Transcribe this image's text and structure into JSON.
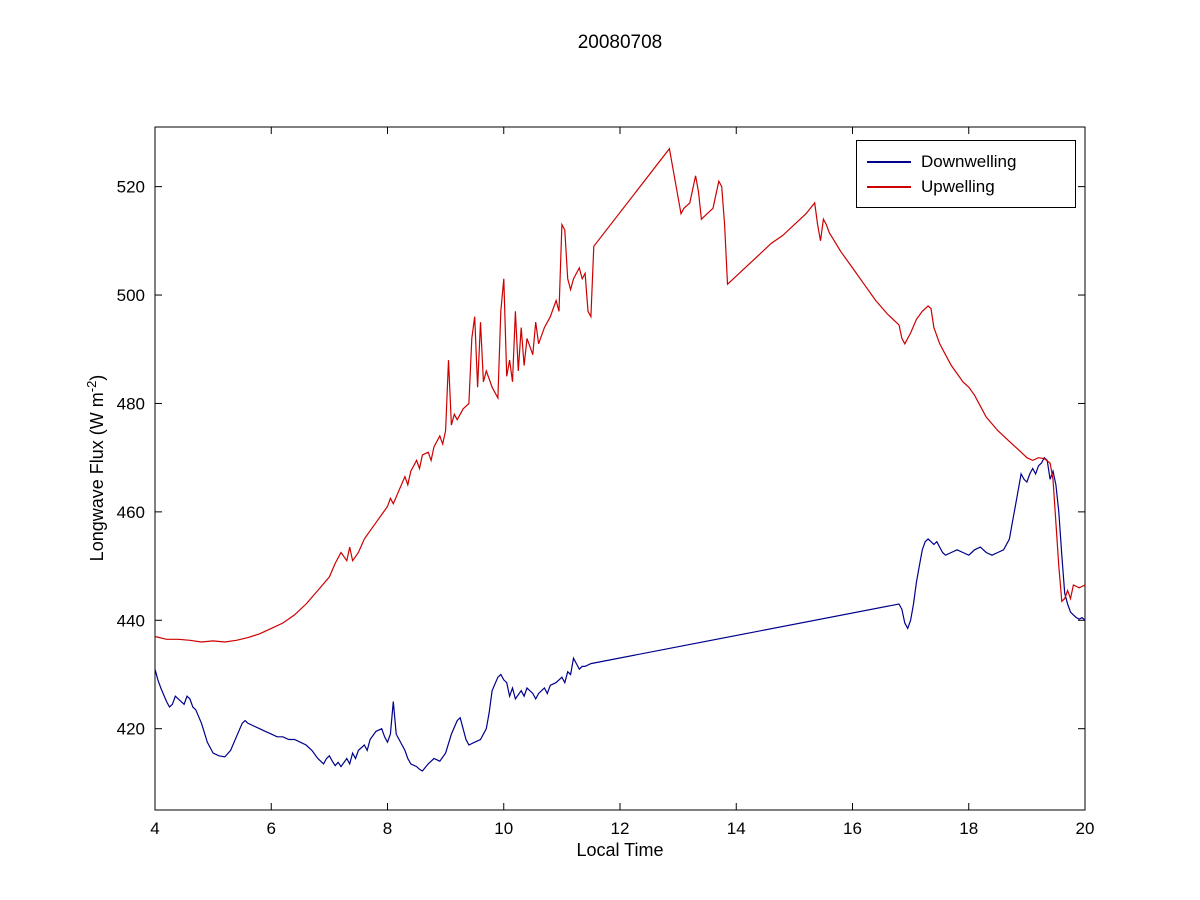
{
  "chart_data": {
    "type": "line",
    "title": "20080708",
    "xlabel": "Local Time",
    "ylabel": "Longwave Flux (W m-2)",
    "ylabel_parts": {
      "prefix": "Longwave Flux (W m",
      "sup": "-2",
      "suffix": ")"
    },
    "xlim": [
      4,
      20
    ],
    "ylim": [
      405,
      531
    ],
    "x_ticks": [
      4,
      6,
      8,
      10,
      12,
      14,
      16,
      18,
      20
    ],
    "y_ticks": [
      420,
      440,
      460,
      480,
      500,
      520
    ],
    "grid": false,
    "legend_position": "top-right",
    "series": [
      {
        "name": "Downwelling",
        "color": "#00008B",
        "points": [
          [
            4.0,
            431
          ],
          [
            4.05,
            429
          ],
          [
            4.1,
            427.5
          ],
          [
            4.2,
            425
          ],
          [
            4.25,
            424
          ],
          [
            4.3,
            424.5
          ],
          [
            4.35,
            426
          ],
          [
            4.4,
            425.5
          ],
          [
            4.5,
            424.5
          ],
          [
            4.55,
            426
          ],
          [
            4.6,
            425.5
          ],
          [
            4.65,
            424
          ],
          [
            4.7,
            423.5
          ],
          [
            4.8,
            421
          ],
          [
            4.9,
            417.5
          ],
          [
            5.0,
            415.5
          ],
          [
            5.1,
            415
          ],
          [
            5.2,
            414.8
          ],
          [
            5.3,
            416
          ],
          [
            5.4,
            418.5
          ],
          [
            5.5,
            421
          ],
          [
            5.55,
            421.5
          ],
          [
            5.6,
            421
          ],
          [
            5.7,
            420.5
          ],
          [
            5.8,
            420
          ],
          [
            5.9,
            419.5
          ],
          [
            6.0,
            419
          ],
          [
            6.1,
            418.5
          ],
          [
            6.2,
            418.5
          ],
          [
            6.3,
            418
          ],
          [
            6.4,
            418
          ],
          [
            6.5,
            417.5
          ],
          [
            6.6,
            417
          ],
          [
            6.7,
            416
          ],
          [
            6.8,
            414.5
          ],
          [
            6.9,
            413.5
          ],
          [
            6.95,
            414.5
          ],
          [
            7.0,
            415
          ],
          [
            7.05,
            414
          ],
          [
            7.1,
            413.2
          ],
          [
            7.15,
            413.8
          ],
          [
            7.2,
            413
          ],
          [
            7.3,
            414.5
          ],
          [
            7.35,
            413.5
          ],
          [
            7.4,
            415.5
          ],
          [
            7.45,
            414.5
          ],
          [
            7.5,
            416
          ],
          [
            7.6,
            417
          ],
          [
            7.65,
            416
          ],
          [
            7.7,
            418
          ],
          [
            7.8,
            419.5
          ],
          [
            7.9,
            420
          ],
          [
            7.95,
            418.5
          ],
          [
            8.0,
            417.5
          ],
          [
            8.05,
            419
          ],
          [
            8.1,
            425
          ],
          [
            8.15,
            419
          ],
          [
            8.2,
            418
          ],
          [
            8.3,
            416
          ],
          [
            8.35,
            414.5
          ],
          [
            8.4,
            413.5
          ],
          [
            8.5,
            413
          ],
          [
            8.55,
            412.5
          ],
          [
            8.6,
            412.2
          ],
          [
            8.7,
            413.5
          ],
          [
            8.8,
            414.5
          ],
          [
            8.9,
            414
          ],
          [
            9.0,
            415.5
          ],
          [
            9.1,
            419
          ],
          [
            9.2,
            421.5
          ],
          [
            9.25,
            422
          ],
          [
            9.3,
            420
          ],
          [
            9.35,
            418
          ],
          [
            9.4,
            417
          ],
          [
            9.5,
            417.5
          ],
          [
            9.6,
            418
          ],
          [
            9.7,
            420
          ],
          [
            9.75,
            423
          ],
          [
            9.8,
            427
          ],
          [
            9.9,
            429.5
          ],
          [
            9.95,
            430
          ],
          [
            10.0,
            429
          ],
          [
            10.05,
            428.5
          ],
          [
            10.1,
            426
          ],
          [
            10.15,
            427.5
          ],
          [
            10.2,
            425.5
          ],
          [
            10.3,
            427
          ],
          [
            10.35,
            426
          ],
          [
            10.4,
            427.5
          ],
          [
            10.5,
            426.5
          ],
          [
            10.55,
            425.5
          ],
          [
            10.6,
            426.5
          ],
          [
            10.7,
            427.5
          ],
          [
            10.75,
            426.5
          ],
          [
            10.8,
            428
          ],
          [
            10.9,
            428.5
          ],
          [
            11.0,
            429.5
          ],
          [
            11.05,
            428.5
          ],
          [
            11.1,
            430.5
          ],
          [
            11.15,
            430
          ],
          [
            11.2,
            433
          ],
          [
            11.25,
            432
          ],
          [
            11.3,
            431
          ],
          [
            11.35,
            431.5
          ],
          [
            11.4,
            431.5
          ],
          [
            11.5,
            432
          ],
          [
            16.8,
            443
          ],
          [
            16.85,
            442
          ],
          [
            16.9,
            439.5
          ],
          [
            16.95,
            438.5
          ],
          [
            17.0,
            440
          ],
          [
            17.05,
            443
          ],
          [
            17.1,
            447
          ],
          [
            17.15,
            450
          ],
          [
            17.2,
            453
          ],
          [
            17.25,
            454.5
          ],
          [
            17.3,
            455
          ],
          [
            17.35,
            454.5
          ],
          [
            17.4,
            454
          ],
          [
            17.45,
            454.5
          ],
          [
            17.5,
            453.5
          ],
          [
            17.55,
            452.5
          ],
          [
            17.6,
            452
          ],
          [
            17.7,
            452.5
          ],
          [
            17.8,
            453
          ],
          [
            17.9,
            452.5
          ],
          [
            18.0,
            452
          ],
          [
            18.05,
            452.5
          ],
          [
            18.1,
            453
          ],
          [
            18.2,
            453.5
          ],
          [
            18.3,
            452.5
          ],
          [
            18.4,
            452
          ],
          [
            18.5,
            452.5
          ],
          [
            18.6,
            453
          ],
          [
            18.7,
            455
          ],
          [
            18.75,
            458
          ],
          [
            18.8,
            461
          ],
          [
            18.85,
            464
          ],
          [
            18.9,
            467
          ],
          [
            18.95,
            466
          ],
          [
            19.0,
            465.5
          ],
          [
            19.05,
            467
          ],
          [
            19.1,
            468
          ],
          [
            19.15,
            467
          ],
          [
            19.2,
            468.5
          ],
          [
            19.25,
            469
          ],
          [
            19.3,
            470
          ],
          [
            19.35,
            469.5
          ],
          [
            19.4,
            466
          ],
          [
            19.45,
            467.5
          ],
          [
            19.5,
            465
          ],
          [
            19.55,
            460
          ],
          [
            19.6,
            452
          ],
          [
            19.65,
            445
          ],
          [
            19.7,
            443
          ],
          [
            19.75,
            441.5
          ],
          [
            19.8,
            441
          ],
          [
            19.85,
            440.5
          ],
          [
            19.9,
            440.2
          ],
          [
            19.95,
            440.5
          ],
          [
            20.0,
            440
          ]
        ]
      },
      {
        "name": "Upwelling",
        "color": "#CD0000",
        "points": [
          [
            4.0,
            437
          ],
          [
            4.2,
            436.5
          ],
          [
            4.4,
            436.5
          ],
          [
            4.6,
            436.3
          ],
          [
            4.8,
            436
          ],
          [
            5.0,
            436.2
          ],
          [
            5.2,
            436
          ],
          [
            5.4,
            436.3
          ],
          [
            5.6,
            436.8
          ],
          [
            5.8,
            437.5
          ],
          [
            6.0,
            438.5
          ],
          [
            6.2,
            439.5
          ],
          [
            6.4,
            441
          ],
          [
            6.6,
            443
          ],
          [
            6.8,
            445.5
          ],
          [
            7.0,
            448
          ],
          [
            7.1,
            450.5
          ],
          [
            7.2,
            452.5
          ],
          [
            7.3,
            451
          ],
          [
            7.35,
            453.5
          ],
          [
            7.4,
            451
          ],
          [
            7.5,
            452.5
          ],
          [
            7.6,
            455
          ],
          [
            7.7,
            456.5
          ],
          [
            7.8,
            458
          ],
          [
            7.9,
            459.5
          ],
          [
            8.0,
            461
          ],
          [
            8.05,
            462.5
          ],
          [
            8.1,
            461.5
          ],
          [
            8.2,
            464
          ],
          [
            8.3,
            466.5
          ],
          [
            8.35,
            465
          ],
          [
            8.4,
            467.5
          ],
          [
            8.5,
            469.5
          ],
          [
            8.55,
            468
          ],
          [
            8.6,
            470.5
          ],
          [
            8.7,
            471
          ],
          [
            8.75,
            469.5
          ],
          [
            8.8,
            472
          ],
          [
            8.9,
            474
          ],
          [
            8.95,
            472.5
          ],
          [
            9.0,
            475
          ],
          [
            9.05,
            488
          ],
          [
            9.1,
            476
          ],
          [
            9.15,
            478
          ],
          [
            9.2,
            477
          ],
          [
            9.3,
            479
          ],
          [
            9.4,
            480
          ],
          [
            9.45,
            492
          ],
          [
            9.5,
            496
          ],
          [
            9.55,
            483
          ],
          [
            9.6,
            495
          ],
          [
            9.65,
            484
          ],
          [
            9.7,
            486
          ],
          [
            9.8,
            483
          ],
          [
            9.9,
            481
          ],
          [
            9.95,
            497
          ],
          [
            10.0,
            503
          ],
          [
            10.05,
            485
          ],
          [
            10.1,
            488
          ],
          [
            10.15,
            484
          ],
          [
            10.2,
            497
          ],
          [
            10.25,
            486
          ],
          [
            10.3,
            494
          ],
          [
            10.35,
            487
          ],
          [
            10.4,
            492
          ],
          [
            10.5,
            489
          ],
          [
            10.55,
            495
          ],
          [
            10.6,
            491
          ],
          [
            10.7,
            494
          ],
          [
            10.8,
            496
          ],
          [
            10.9,
            499
          ],
          [
            10.95,
            497
          ],
          [
            11.0,
            513
          ],
          [
            11.05,
            512
          ],
          [
            11.1,
            503
          ],
          [
            11.15,
            501
          ],
          [
            11.2,
            503
          ],
          [
            11.3,
            505
          ],
          [
            11.35,
            503
          ],
          [
            11.4,
            504
          ],
          [
            11.45,
            497
          ],
          [
            11.5,
            496
          ],
          [
            11.55,
            509
          ],
          [
            12.85,
            527
          ],
          [
            12.95,
            521
          ],
          [
            13.05,
            515
          ],
          [
            13.1,
            516
          ],
          [
            13.2,
            517
          ],
          [
            13.3,
            522
          ],
          [
            13.35,
            519
          ],
          [
            13.4,
            514
          ],
          [
            13.5,
            515
          ],
          [
            13.6,
            516
          ],
          [
            13.7,
            521
          ],
          [
            13.75,
            520
          ],
          [
            13.8,
            513
          ],
          [
            13.85,
            502
          ],
          [
            14.0,
            503.5
          ],
          [
            14.2,
            505.5
          ],
          [
            14.4,
            507.5
          ],
          [
            14.6,
            509.5
          ],
          [
            14.8,
            511
          ],
          [
            15.0,
            513
          ],
          [
            15.2,
            515
          ],
          [
            15.35,
            517
          ],
          [
            15.4,
            513
          ],
          [
            15.45,
            510
          ],
          [
            15.5,
            514
          ],
          [
            15.55,
            513
          ],
          [
            15.6,
            511.5
          ],
          [
            15.8,
            508
          ],
          [
            16.0,
            505
          ],
          [
            16.2,
            502
          ],
          [
            16.4,
            499
          ],
          [
            16.6,
            496.5
          ],
          [
            16.8,
            494.5
          ],
          [
            16.85,
            492
          ],
          [
            16.9,
            491
          ],
          [
            17.0,
            493
          ],
          [
            17.1,
            495.5
          ],
          [
            17.2,
            497
          ],
          [
            17.3,
            498
          ],
          [
            17.35,
            497.5
          ],
          [
            17.4,
            494
          ],
          [
            17.5,
            491
          ],
          [
            17.6,
            489
          ],
          [
            17.7,
            487
          ],
          [
            17.8,
            485.5
          ],
          [
            17.9,
            484
          ],
          [
            18.0,
            483
          ],
          [
            18.1,
            481.5
          ],
          [
            18.2,
            479.5
          ],
          [
            18.3,
            477.5
          ],
          [
            18.5,
            475
          ],
          [
            18.7,
            473
          ],
          [
            18.9,
            471
          ],
          [
            19.0,
            470
          ],
          [
            19.1,
            469.5
          ],
          [
            19.2,
            470
          ],
          [
            19.3,
            469.8
          ],
          [
            19.4,
            469
          ],
          [
            19.45,
            466
          ],
          [
            19.5,
            458
          ],
          [
            19.55,
            450
          ],
          [
            19.6,
            443.5
          ],
          [
            19.65,
            444
          ],
          [
            19.7,
            445.5
          ],
          [
            19.75,
            444
          ],
          [
            19.8,
            446.5
          ],
          [
            19.9,
            446
          ],
          [
            20.0,
            446.5
          ]
        ]
      }
    ]
  }
}
